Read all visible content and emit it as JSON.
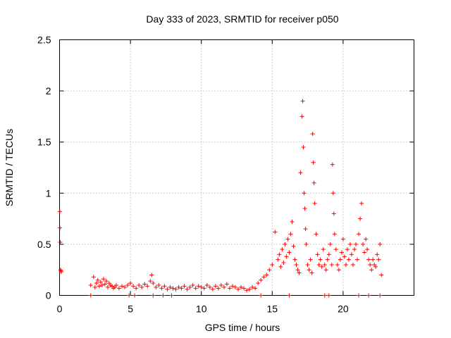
{
  "chart_data": {
    "type": "scatter",
    "title": "Day 333 of 2023, SRMTID for receiver p050",
    "xlabel": "GPS time / hours",
    "ylabel": "SRMTID / TECUs",
    "xlim": [
      0,
      25
    ],
    "ylim": [
      0,
      2.5
    ],
    "xticks": [
      0,
      5,
      10,
      15,
      20
    ],
    "yticks": [
      0,
      0.5,
      1,
      1.5,
      2,
      2.5
    ],
    "ytick_labels": [
      "0",
      "0.5",
      "1",
      "1.5",
      "2",
      "2.5"
    ],
    "grid": true,
    "marker": "+",
    "color": "#ff0000",
    "series": [
      {
        "name": "SRMTID",
        "x": [
          0.02,
          0.03,
          0.05,
          0.07,
          0.1,
          0.12,
          2.2,
          2.4,
          2.5,
          2.6,
          2.7,
          2.8,
          2.9,
          3.0,
          3.1,
          3.2,
          3.3,
          3.4,
          3.5,
          3.6,
          3.7,
          3.8,
          3.9,
          4.0,
          4.2,
          4.4,
          4.6,
          4.8,
          5.0,
          5.2,
          5.4,
          5.6,
          5.8,
          6.0,
          6.2,
          6.4,
          6.5,
          6.6,
          6.8,
          7.0,
          7.2,
          7.4,
          7.6,
          7.8,
          8.0,
          8.2,
          8.4,
          8.6,
          8.8,
          9.0,
          9.2,
          9.4,
          9.6,
          9.8,
          10.0,
          10.2,
          10.4,
          10.6,
          10.8,
          11.0,
          11.2,
          11.4,
          11.6,
          11.8,
          12.0,
          12.2,
          12.4,
          12.6,
          12.8,
          13.0,
          13.2,
          13.4,
          13.6,
          13.8,
          14.0,
          14.2,
          14.4,
          14.6,
          14.8,
          15.0,
          15.2,
          15.4,
          15.5,
          15.6,
          15.7,
          15.8,
          15.9,
          16.0,
          16.1,
          16.2,
          16.3,
          16.4,
          16.5,
          16.6,
          16.7,
          16.8,
          16.9,
          17.0,
          17.1,
          17.15,
          17.2,
          17.25,
          17.3,
          17.35,
          17.4,
          17.5,
          17.6,
          17.7,
          17.8,
          17.85,
          17.9,
          17.95,
          18.0,
          18.1,
          18.2,
          18.3,
          18.4,
          18.5,
          18.6,
          18.7,
          18.8,
          18.9,
          19.0,
          19.1,
          19.2,
          19.25,
          19.3,
          19.35,
          19.4,
          19.5,
          19.6,
          19.7,
          19.8,
          19.9,
          20.0,
          20.1,
          20.2,
          20.3,
          20.4,
          20.5,
          20.6,
          20.7,
          20.8,
          20.9,
          21.0,
          21.1,
          21.2,
          21.3,
          21.4,
          21.5,
          21.6,
          21.7,
          21.8,
          21.9,
          22.0,
          22.1,
          22.2,
          22.3,
          22.4,
          22.5,
          22.6,
          22.7,
          2.2,
          4.9,
          5.3,
          6.6,
          7.3,
          7.9,
          14.2,
          16.2,
          18.7,
          19.0,
          21.1,
          21.8,
          22.6
        ],
        "y": [
          0.82,
          0.66,
          0.52,
          0.25,
          0.24,
          0.23,
          0.1,
          0.18,
          0.08,
          0.12,
          0.15,
          0.09,
          0.13,
          0.1,
          0.16,
          0.11,
          0.14,
          0.08,
          0.12,
          0.1,
          0.09,
          0.07,
          0.08,
          0.1,
          0.07,
          0.09,
          0.08,
          0.1,
          0.12,
          0.09,
          0.07,
          0.1,
          0.08,
          0.11,
          0.09,
          0.14,
          0.2,
          0.12,
          0.08,
          0.1,
          0.07,
          0.09,
          0.06,
          0.08,
          0.07,
          0.06,
          0.08,
          0.07,
          0.09,
          0.06,
          0.08,
          0.1,
          0.07,
          0.09,
          0.08,
          0.07,
          0.1,
          0.08,
          0.06,
          0.09,
          0.07,
          0.1,
          0.08,
          0.11,
          0.07,
          0.09,
          0.08,
          0.06,
          0.08,
          0.07,
          0.05,
          0.06,
          0.08,
          0.07,
          0.12,
          0.15,
          0.18,
          0.2,
          0.25,
          0.3,
          0.62,
          0.35,
          0.4,
          0.28,
          0.45,
          0.32,
          0.5,
          0.38,
          0.55,
          0.42,
          0.6,
          0.72,
          0.48,
          0.35,
          0.3,
          0.25,
          0.22,
          1.2,
          1.75,
          1.9,
          1.45,
          1.0,
          0.85,
          0.65,
          0.5,
          0.3,
          0.25,
          0.35,
          0.22,
          1.58,
          1.3,
          1.1,
          0.9,
          0.6,
          0.4,
          0.3,
          0.35,
          0.28,
          0.45,
          0.3,
          0.25,
          0.35,
          0.4,
          0.5,
          0.3,
          1.28,
          1.0,
          0.8,
          0.6,
          0.45,
          0.3,
          0.25,
          0.35,
          0.42,
          0.55,
          0.38,
          0.3,
          0.45,
          0.35,
          0.5,
          0.4,
          0.3,
          0.45,
          0.5,
          0.35,
          0.6,
          0.75,
          0.9,
          0.5,
          0.42,
          0.55,
          0.45,
          0.35,
          0.3,
          0.25,
          0.35,
          0.3,
          0.28,
          0.4,
          0.35,
          0.5,
          0.2,
          0,
          0,
          0,
          0,
          0,
          0,
          0,
          0,
          0,
          0,
          0,
          0,
          0
        ]
      }
    ]
  }
}
